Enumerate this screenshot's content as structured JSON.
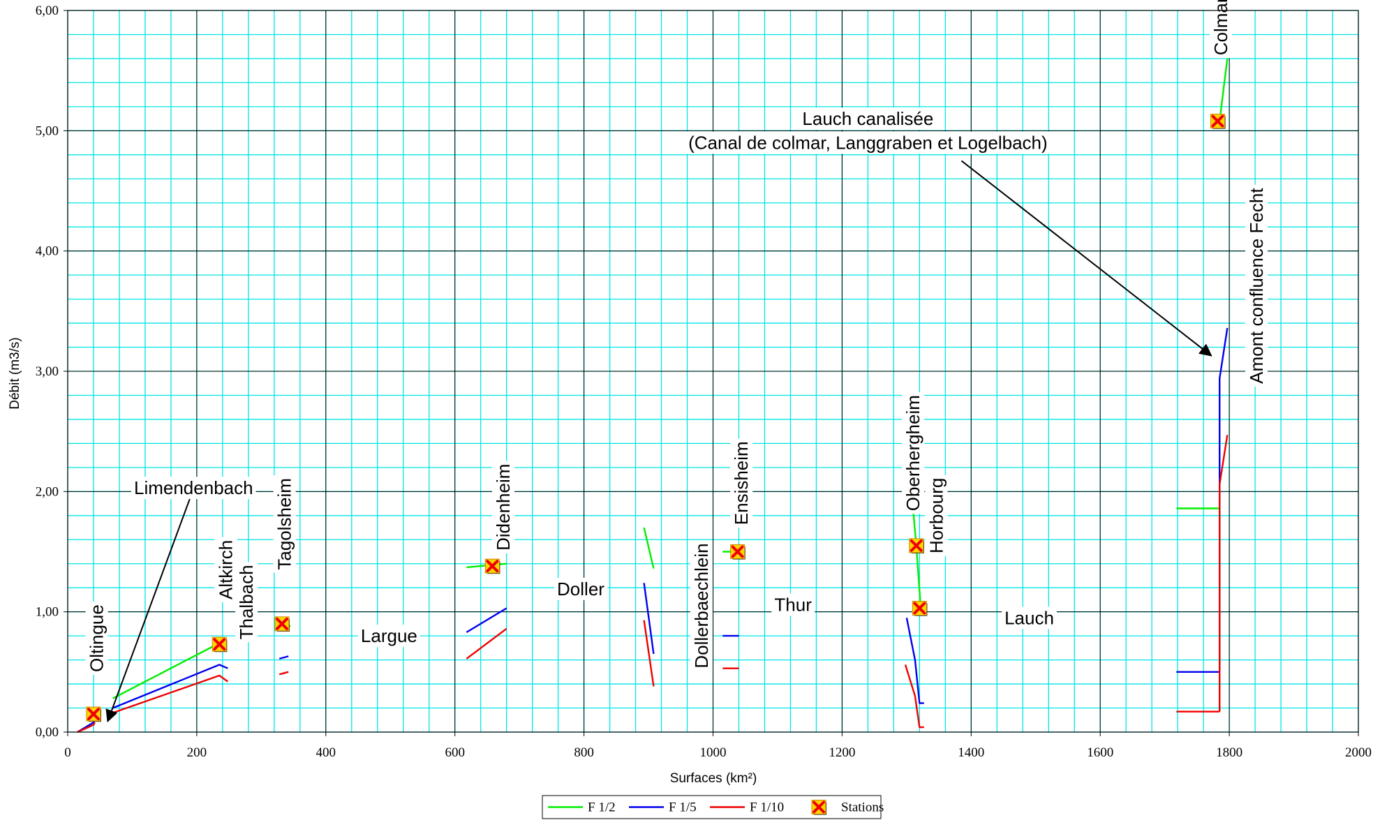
{
  "chart_data": {
    "type": "line",
    "title": "",
    "xlabel": "Surfaces (km²)",
    "ylabel": "Débit (m3/s)",
    "xlim": [
      0,
      2000
    ],
    "ylim": [
      0,
      6
    ],
    "x_ticks": [
      0,
      200,
      400,
      600,
      800,
      1000,
      1200,
      1400,
      1600,
      1800,
      2000
    ],
    "x_tick_labels": [
      "0",
      "200",
      "400",
      "600",
      "800",
      "1000",
      "1200",
      "1400",
      "1600",
      "1800",
      "2000"
    ],
    "y_ticks": [
      0,
      1,
      2,
      3,
      4,
      5,
      6
    ],
    "y_tick_labels": [
      "0,00",
      "1,00",
      "2,00",
      "3,00",
      "4,00",
      "5,00",
      "6,00"
    ],
    "grid": {
      "major": true,
      "minor": true,
      "minor_color": "#00e5e5",
      "major_color": "#000000"
    },
    "legend_position": "bottom-center",
    "series": [
      {
        "name": "F 1/2",
        "color": "#00ee00",
        "segments": [
          [
            [
              15,
              0.0
            ],
            [
              40,
              0.08
            ],
            [
              42,
              0.1
            ]
          ],
          [
            [
              70,
              0.28
            ],
            [
              235,
              0.74
            ],
            [
              245,
              0.77
            ]
          ],
          [
            [
              330,
              0.9
            ],
            [
              345,
              0.88
            ]
          ],
          [
            [
              618,
              1.37
            ],
            [
              680,
              1.4
            ]
          ],
          [
            [
              893,
              1.7
            ],
            [
              908,
              1.36
            ]
          ],
          [
            [
              1015,
              1.5
            ],
            [
              1045,
              1.5
            ]
          ],
          [
            [
              1302,
              2.34
            ],
            [
              1315,
              1.55
            ],
            [
              1322,
              1.02
            ],
            [
              1325,
              1.0
            ]
          ],
          [
            [
              1718,
              1.86
            ],
            [
              1785,
              1.86
            ]
          ],
          [
            [
              1785,
              5.08
            ],
            [
              1797,
              5.6
            ]
          ]
        ]
      },
      {
        "name": "F 1/5",
        "color": "#0000ee",
        "segments": [
          [
            [
              15,
              0.0
            ],
            [
              40,
              0.08
            ],
            [
              42,
              0.1
            ]
          ],
          [
            [
              70,
              0.2
            ],
            [
              235,
              0.56
            ],
            [
              248,
              0.53
            ]
          ],
          [
            [
              328,
              0.61
            ],
            [
              342,
              0.63
            ]
          ],
          [
            [
              618,
              0.83
            ],
            [
              680,
              1.03
            ]
          ],
          [
            [
              893,
              1.24
            ],
            [
              908,
              0.65
            ]
          ],
          [
            [
              1015,
              0.8
            ],
            [
              1040,
              0.8
            ]
          ],
          [
            [
              1300,
              0.95
            ],
            [
              1313,
              0.6
            ],
            [
              1320,
              0.24
            ],
            [
              1327,
              0.24
            ]
          ],
          [
            [
              1718,
              0.5
            ],
            [
              1785,
              0.5
            ]
          ],
          [
            [
              1785,
              0.5
            ],
            [
              1785,
              2.94
            ],
            [
              1797,
              3.36
            ]
          ]
        ]
      },
      {
        "name": "F 1/10",
        "color": "#ee0000",
        "segments": [
          [
            [
              15,
              0.0
            ],
            [
              40,
              0.06
            ],
            [
              42,
              0.08
            ]
          ],
          [
            [
              70,
              0.16
            ],
            [
              235,
              0.47
            ],
            [
              248,
              0.42
            ]
          ],
          [
            [
              328,
              0.48
            ],
            [
              342,
              0.5
            ]
          ],
          [
            [
              618,
              0.61
            ],
            [
              680,
              0.86
            ]
          ],
          [
            [
              893,
              0.93
            ],
            [
              908,
              0.38
            ]
          ],
          [
            [
              1015,
              0.53
            ],
            [
              1040,
              0.53
            ]
          ],
          [
            [
              1298,
              0.56
            ],
            [
              1313,
              0.3
            ],
            [
              1320,
              0.04
            ],
            [
              1327,
              0.04
            ]
          ],
          [
            [
              1718,
              0.17
            ],
            [
              1785,
              0.17
            ]
          ],
          [
            [
              1785,
              0.17
            ],
            [
              1785,
              2.06
            ],
            [
              1797,
              2.47
            ]
          ]
        ]
      }
    ],
    "stations": {
      "name": "Stations",
      "points": [
        [
          40,
          0.15
        ],
        [
          235,
          0.73
        ],
        [
          332,
          0.9
        ],
        [
          658,
          1.38
        ],
        [
          1038,
          1.5
        ],
        [
          1315,
          1.55
        ],
        [
          1320,
          1.03
        ],
        [
          1782,
          5.08
        ]
      ]
    },
    "annotations": [
      {
        "text": "Oltingue",
        "x": 45,
        "y": 0.78,
        "rotate": -90
      },
      {
        "text": "Limendenbach",
        "x": 195,
        "y": 2.03,
        "rotate": 0,
        "arrow_to": [
          62,
          0.09
        ],
        "arrow_from": [
          192,
          1.98
        ]
      },
      {
        "text": "Altkirch",
        "x": 245,
        "y": 1.35,
        "rotate": -90
      },
      {
        "text": "Thalbach",
        "x": 277,
        "y": 1.08,
        "rotate": -90
      },
      {
        "text": "Tagolsheim",
        "x": 336,
        "y": 1.73,
        "rotate": -90
      },
      {
        "text": "Largue",
        "x": 498,
        "y": 0.8,
        "rotate": 0
      },
      {
        "text": "Didenheim",
        "x": 675,
        "y": 1.87,
        "rotate": -90
      },
      {
        "text": "Doller",
        "x": 795,
        "y": 1.19,
        "rotate": 0
      },
      {
        "text": "Dollerbaechlein",
        "x": 982,
        "y": 1.05,
        "rotate": -90
      },
      {
        "text": "Ensisheim",
        "x": 1044,
        "y": 2.07,
        "rotate": -90
      },
      {
        "text": "Thur",
        "x": 1124,
        "y": 1.06,
        "rotate": 0
      },
      {
        "text": "Oberhergheim",
        "x": 1310,
        "y": 2.32,
        "rotate": -90
      },
      {
        "text": "Horbourg",
        "x": 1346,
        "y": 1.8,
        "rotate": -90
      },
      {
        "text": "Lauch",
        "x": 1490,
        "y": 0.95,
        "rotate": 0
      },
      {
        "text": "Colmar",
        "x": 1787,
        "y": 5.87,
        "rotate": -90
      },
      {
        "text": "Amont confluence Fecht",
        "x": 1842,
        "y": 3.71,
        "rotate": -90
      },
      {
        "text": "Lauch canalisée",
        "x": 1240,
        "y": 5.1,
        "rotate": 0
      },
      {
        "text": "(Canal de colmar, Langgraben et Logelbach)",
        "x": 1240,
        "y": 4.9,
        "rotate": 0,
        "arrow_from": [
          1385,
          4.75
        ],
        "arrow_to": [
          1772,
          3.13
        ]
      }
    ],
    "legend": {
      "items": [
        {
          "label": "F 1/2",
          "type": "line",
          "color": "#00ee00"
        },
        {
          "label": "F 1/5",
          "type": "line",
          "color": "#0000ee"
        },
        {
          "label": "F 1/10",
          "type": "line",
          "color": "#ee0000"
        },
        {
          "label": "Stations",
          "type": "marker",
          "color": "#ee0000"
        }
      ]
    }
  }
}
